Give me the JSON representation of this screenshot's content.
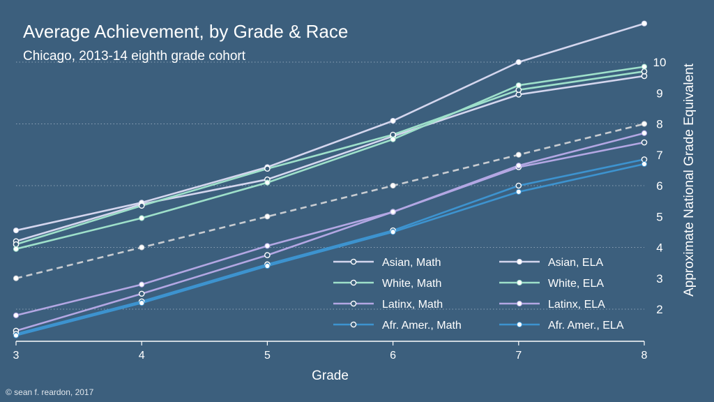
{
  "title": "Average Achievement, by Grade & Race",
  "subtitle": "Chicago, 2013-14 eighth grade cohort",
  "credit": "© sean f. reardon, 2017",
  "colors": {
    "background": "#3c5f7d",
    "asian": "#d4d6ee",
    "white": "#9ee0ca",
    "latinx": "#b3a7e3",
    "afr_amer": "#3d93cf",
    "reference": "#c8ccd1",
    "grid": "#8ea3b6"
  },
  "chart_data": {
    "type": "line",
    "xlabel": "Grade",
    "ylabel": "Approximate National Grade Equivalent",
    "x": [
      3,
      4,
      5,
      6,
      7,
      8
    ],
    "xlim": [
      3,
      8
    ],
    "ylim": [
      1,
      11
    ],
    "y_ticks": [
      2,
      3,
      4,
      5,
      6,
      7,
      8,
      9,
      10
    ],
    "y_gridlines": [
      2,
      4,
      6,
      8,
      10
    ],
    "grid": true,
    "legend_position": "bottom-right",
    "series": [
      {
        "name": "Asian, Math",
        "marker": "open",
        "color": "#d4d6ee",
        "values": [
          4.2,
          5.4,
          6.2,
          7.6,
          8.95,
          9.55
        ]
      },
      {
        "name": "Asian, ELA",
        "marker": "filled",
        "color": "#d4d6ee",
        "values": [
          4.55,
          5.45,
          6.6,
          8.1,
          10.0,
          11.25
        ]
      },
      {
        "name": "White, Math",
        "marker": "open",
        "color": "#9ee0ca",
        "values": [
          4.1,
          5.35,
          6.55,
          7.65,
          9.1,
          9.7
        ]
      },
      {
        "name": "White, ELA",
        "marker": "filled",
        "color": "#9ee0ca",
        "values": [
          3.95,
          4.95,
          6.1,
          7.5,
          9.25,
          9.85
        ]
      },
      {
        "name": "Latinx, Math",
        "marker": "open",
        "color": "#b3a7e3",
        "values": [
          1.3,
          2.5,
          3.75,
          5.15,
          6.6,
          7.4
        ]
      },
      {
        "name": "Latinx, ELA",
        "marker": "filled",
        "color": "#b3a7e3",
        "values": [
          1.8,
          2.8,
          4.05,
          5.15,
          6.65,
          7.7
        ]
      },
      {
        "name": "Afr. Amer., Math",
        "marker": "open",
        "color": "#3d93cf",
        "values": [
          1.2,
          2.25,
          3.45,
          4.55,
          6.0,
          6.85
        ]
      },
      {
        "name": "Afr. Amer., ELA",
        "marker": "filled",
        "color": "#3d93cf",
        "values": [
          1.15,
          2.2,
          3.4,
          4.5,
          5.8,
          6.7
        ]
      },
      {
        "name": "",
        "marker": "filled",
        "color": "#c8ccd1",
        "dashed": true,
        "values": [
          3.0,
          4.0,
          5.0,
          6.0,
          7.0,
          8.0
        ]
      }
    ]
  }
}
